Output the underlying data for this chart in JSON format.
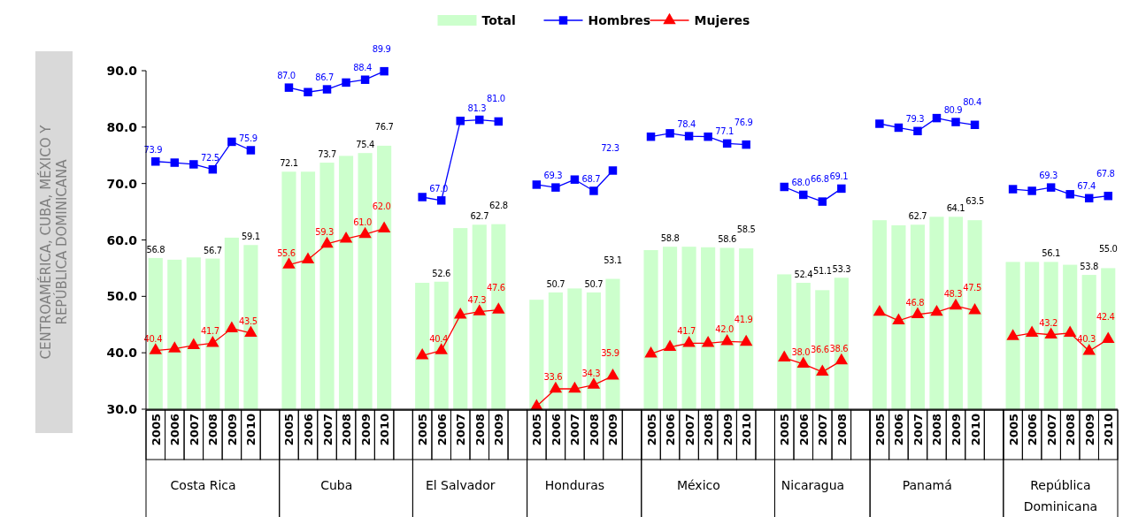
{
  "chart_data": {
    "type": "bar",
    "ylabel": "CENTROAMÉRICA, CUBA, MÉXICO Y REPÚBLICA DOMINICANA",
    "categories": [
      "2005",
      "2006",
      "2007",
      "2008",
      "2009",
      "2010",
      null,
      "2005",
      "2006",
      "2007",
      "2008",
      "2009",
      "2010",
      null,
      "2005",
      "2006",
      "2007",
      "2008",
      "2009",
      null,
      "2005",
      "2006",
      "2007",
      "2008",
      "2009",
      null,
      "2005",
      "2006",
      "2007",
      "2008",
      "2009",
      "2010",
      null,
      "2005",
      "2006",
      "2007",
      "2008",
      null,
      "2005",
      "2006",
      "2007",
      "2008",
      "2009",
      "2010",
      null,
      "2005",
      "2006",
      "2007",
      "2008",
      "2009",
      "2010"
    ],
    "annotations": [
      "Costa Rica",
      "Cuba",
      "El Salvador",
      "Honduras",
      "México",
      "Nicaragua",
      "Panamá",
      "República Dominicana"
    ],
    "ylim": [
      30,
      90
    ],
    "yticks": [
      {
        "value": 30,
        "label": "30.0"
      },
      {
        "value": 40,
        "label": "40.0"
      },
      {
        "value": 50,
        "label": "50.0"
      },
      {
        "value": 60,
        "label": "60.0"
      },
      {
        "value": 70,
        "label": "70.0"
      },
      {
        "value": 80,
        "label": "80.0"
      },
      {
        "value": 90,
        "label": "90.0"
      }
    ],
    "legend": "top",
    "grid": false,
    "series": [
      {
        "name": "Total",
        "color": "#ccffcc",
        "values": [
          56.8,
          56.5,
          56.9,
          56.7,
          60.4,
          59.1,
          null,
          72.1,
          72.1,
          73.7,
          74.9,
          75.4,
          76.7,
          null,
          52.4,
          52.6,
          62.1,
          62.7,
          62.8,
          null,
          49.4,
          50.7,
          51.4,
          50.7,
          53.1,
          null,
          58.2,
          58.8,
          58.8,
          58.7,
          58.6,
          58.5,
          null,
          53.9,
          52.4,
          51.1,
          53.3,
          null,
          63.5,
          62.6,
          62.7,
          64.1,
          64.1,
          63.5,
          null,
          56.1,
          56.1,
          56.1,
          55.6,
          53.8,
          55.0
        ],
        "value_labels": [
          "56.8",
          null,
          null,
          "56.7",
          null,
          "59.1",
          null,
          "72.1",
          null,
          "73.7",
          null,
          "75.4",
          "76.7",
          null,
          null,
          "52.6",
          null,
          "62.7",
          "62.8",
          null,
          null,
          "50.7",
          null,
          "50.7",
          "53.1",
          null,
          null,
          "58.8",
          null,
          null,
          "58.6",
          "58.5",
          null,
          null,
          "52.4",
          "51.1",
          "53.3",
          null,
          null,
          null,
          "62.7",
          null,
          "64.1",
          "63.5",
          null,
          null,
          null,
          "56.1",
          null,
          "53.8",
          "55.0"
        ]
      },
      {
        "name": "Hombres",
        "type": "line",
        "color": "#0000ff",
        "marker": "square",
        "values": [
          73.9,
          73.7,
          73.4,
          72.5,
          77.4,
          75.9,
          null,
          87.0,
          86.2,
          86.7,
          87.9,
          88.4,
          89.9,
          null,
          67.6,
          67.0,
          81.1,
          81.3,
          81.0,
          null,
          69.8,
          69.3,
          70.7,
          68.7,
          72.3,
          null,
          78.3,
          78.9,
          78.4,
          78.3,
          77.1,
          76.9,
          null,
          69.4,
          68.0,
          66.8,
          69.1,
          null,
          80.6,
          79.9,
          79.3,
          81.6,
          80.9,
          80.4,
          null,
          69.0,
          68.7,
          69.3,
          68.1,
          67.4,
          67.8
        ],
        "value_labels": [
          "73.9",
          null,
          null,
          "72.5",
          null,
          "75.9",
          null,
          "87.0",
          null,
          "86.7",
          null,
          "88.4",
          "89.9",
          null,
          null,
          "67.0",
          null,
          "81.3",
          "81.0",
          null,
          null,
          "69.3",
          null,
          "68.7",
          "72.3",
          null,
          null,
          null,
          "78.4",
          null,
          "77.1",
          "76.9",
          null,
          null,
          "68.0",
          "66.8",
          "69.1",
          null,
          null,
          null,
          "79.3",
          null,
          "80.9",
          "80.4",
          null,
          null,
          null,
          "69.3",
          null,
          "67.4",
          "67.8"
        ]
      },
      {
        "name": "Mujeres",
        "type": "line",
        "color": "#ff0000",
        "marker": "triangle",
        "values": [
          40.4,
          40.7,
          41.3,
          41.7,
          44.3,
          43.5,
          null,
          55.6,
          56.5,
          59.3,
          60.2,
          61.0,
          62.0,
          null,
          39.5,
          40.4,
          46.7,
          47.3,
          47.6,
          null,
          30.5,
          33.6,
          33.6,
          34.3,
          35.9,
          null,
          39.8,
          41.0,
          41.7,
          41.7,
          42.0,
          41.9,
          null,
          39.1,
          38.0,
          36.6,
          38.6,
          null,
          47.2,
          45.7,
          46.8,
          47.2,
          48.3,
          47.5,
          null,
          42.9,
          43.5,
          43.2,
          43.5,
          40.3,
          42.4
        ],
        "value_labels": [
          "40.4",
          null,
          null,
          "41.7",
          null,
          "43.5",
          null,
          "55.6",
          null,
          "59.3",
          null,
          "61.0",
          "62.0",
          null,
          null,
          "40.4",
          null,
          "47.3",
          "47.6",
          null,
          null,
          "33.6",
          null,
          "34.3",
          "35.9",
          null,
          null,
          null,
          "41.7",
          null,
          "42.0",
          "41.9",
          null,
          null,
          "38.0",
          "36.6",
          "38.6",
          null,
          null,
          null,
          "46.8",
          null,
          "48.3",
          "47.5",
          null,
          null,
          null,
          "43.2",
          null,
          "40.3",
          "42.4"
        ]
      }
    ]
  }
}
